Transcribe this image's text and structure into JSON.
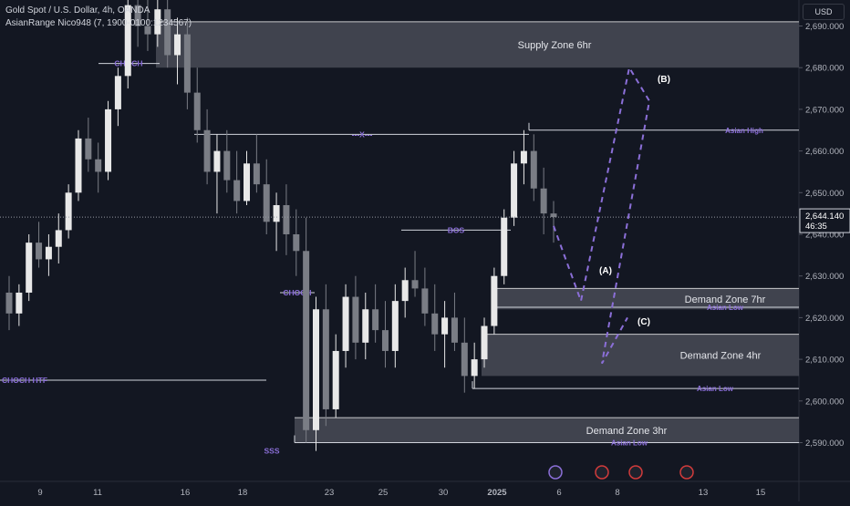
{
  "header": {
    "title": "Gold Spot / U.S. Dollar, 4h, OANDA",
    "indicator": "AsianRange Nico948 (7, 1900-0100:1234567)",
    "currency": "USD"
  },
  "colors": {
    "background": "#131722",
    "up": "#e8e8e8",
    "down": "#7a7d85",
    "accent": "#8b6fd8",
    "zone": "#50535e",
    "line": "#d1d4dc"
  },
  "chart_data": {
    "type": "candlestick",
    "y_range": [
      2583,
      2695
    ],
    "y_ticks": [
      2590,
      2600,
      2610,
      2620,
      2630,
      2640,
      2650,
      2660,
      2670,
      2680,
      2690
    ],
    "y_tick_labels": [
      "2,590.000",
      "2,600.000",
      "2,610.000",
      "2,620.000",
      "2,630.000",
      "2,640.000",
      "2,650.000",
      "2,660.000",
      "2,670.000",
      "2,680.000",
      "2,690.000"
    ],
    "x_labels": [
      "9",
      "11",
      "16",
      "18",
      "23",
      "25",
      "30",
      "2025",
      "6",
      "8",
      "13",
      "15"
    ],
    "last_price": {
      "value": 2644.14,
      "label": "2,644.140",
      "timer": "46:35"
    },
    "candles_ohlc": [
      [
        2626,
        2630,
        2617,
        2621
      ],
      [
        2621,
        2628,
        2618,
        2626
      ],
      [
        2626,
        2640,
        2624,
        2638
      ],
      [
        2638,
        2643,
        2632,
        2634
      ],
      [
        2634,
        2640,
        2630,
        2637
      ],
      [
        2637,
        2645,
        2633,
        2641
      ],
      [
        2641,
        2652,
        2639,
        2650
      ],
      [
        2650,
        2665,
        2648,
        2663
      ],
      [
        2663,
        2668,
        2655,
        2658
      ],
      [
        2658,
        2662,
        2650,
        2655
      ],
      [
        2655,
        2672,
        2653,
        2670
      ],
      [
        2670,
        2680,
        2666,
        2678
      ],
      [
        2678,
        2698,
        2675,
        2695
      ],
      [
        2695,
        2700,
        2685,
        2690
      ],
      [
        2690,
        2700,
        2684,
        2688
      ],
      [
        2688,
        2700,
        2685,
        2694
      ],
      [
        2694,
        2700,
        2680,
        2683
      ],
      [
        2683,
        2692,
        2676,
        2688
      ],
      [
        2688,
        2692,
        2670,
        2674
      ],
      [
        2674,
        2680,
        2662,
        2665
      ],
      [
        2665,
        2670,
        2652,
        2655
      ],
      [
        2655,
        2664,
        2645,
        2660
      ],
      [
        2660,
        2665,
        2650,
        2653
      ],
      [
        2653,
        2660,
        2645,
        2648
      ],
      [
        2648,
        2660,
        2647,
        2657
      ],
      [
        2657,
        2664,
        2650,
        2652
      ],
      [
        2652,
        2658,
        2640,
        2643
      ],
      [
        2643,
        2650,
        2636,
        2647
      ],
      [
        2647,
        2652,
        2635,
        2640
      ],
      [
        2640,
        2646,
        2630,
        2636
      ],
      [
        2636,
        2644,
        2590,
        2593
      ],
      [
        2593,
        2625,
        2588,
        2622
      ],
      [
        2622,
        2628,
        2594,
        2598
      ],
      [
        2598,
        2616,
        2596,
        2612
      ],
      [
        2612,
        2628,
        2608,
        2625
      ],
      [
        2625,
        2630,
        2610,
        2614
      ],
      [
        2614,
        2626,
        2610,
        2622
      ],
      [
        2622,
        2628,
        2614,
        2617
      ],
      [
        2617,
        2624,
        2608,
        2612
      ],
      [
        2612,
        2628,
        2608,
        2624
      ],
      [
        2624,
        2632,
        2620,
        2629
      ],
      [
        2629,
        2636,
        2625,
        2627
      ],
      [
        2627,
        2632,
        2618,
        2621
      ],
      [
        2621,
        2628,
        2612,
        2616
      ],
      [
        2616,
        2624,
        2608,
        2620
      ],
      [
        2620,
        2626,
        2612,
        2614
      ],
      [
        2614,
        2620,
        2602,
        2606
      ],
      [
        2606,
        2614,
        2603,
        2610
      ],
      [
        2610,
        2620,
        2608,
        2618
      ],
      [
        2618,
        2632,
        2616,
        2630
      ],
      [
        2630,
        2646,
        2628,
        2644
      ],
      [
        2644,
        2660,
        2642,
        2657
      ],
      [
        2657,
        2665,
        2652,
        2660
      ],
      [
        2660,
        2664,
        2648,
        2651
      ],
      [
        2651,
        2656,
        2640,
        2645
      ],
      [
        2645,
        2648,
        2638,
        2644.14
      ]
    ],
    "zones": [
      {
        "label": "Supply Zone 6hr",
        "low": 2680,
        "high": 2691
      },
      {
        "label": "Demand Zone 7hr",
        "low": 2622,
        "high": 2627
      },
      {
        "label": "Demand Zone 4hr",
        "low": 2606,
        "high": 2616
      },
      {
        "label": "Demand Zone 3hr",
        "low": 2590,
        "high": 2596
      }
    ],
    "levels": [
      {
        "label": "Asian High",
        "value": 2665
      },
      {
        "label": "Asian Low",
        "value": 2622.5
      },
      {
        "label": "Asian Low",
        "value": 2603
      },
      {
        "label": "Asian Low",
        "value": 2590
      }
    ],
    "structure_labels": [
      {
        "label": "CHOCH",
        "value": 2681
      },
      {
        "label": "---X---",
        "value": 2664
      },
      {
        "label": "BOS",
        "value": 2641
      },
      {
        "label": "CHOCH",
        "value": 2626
      },
      {
        "label": "CHOCH HTF",
        "value": 2605
      },
      {
        "label": "SSS",
        "value": 2588
      }
    ],
    "projection_path": [
      2642,
      2624,
      2680,
      2672,
      2609,
      2620
    ],
    "projection_labels": [
      "(A)",
      "(B)",
      "(C)"
    ]
  }
}
